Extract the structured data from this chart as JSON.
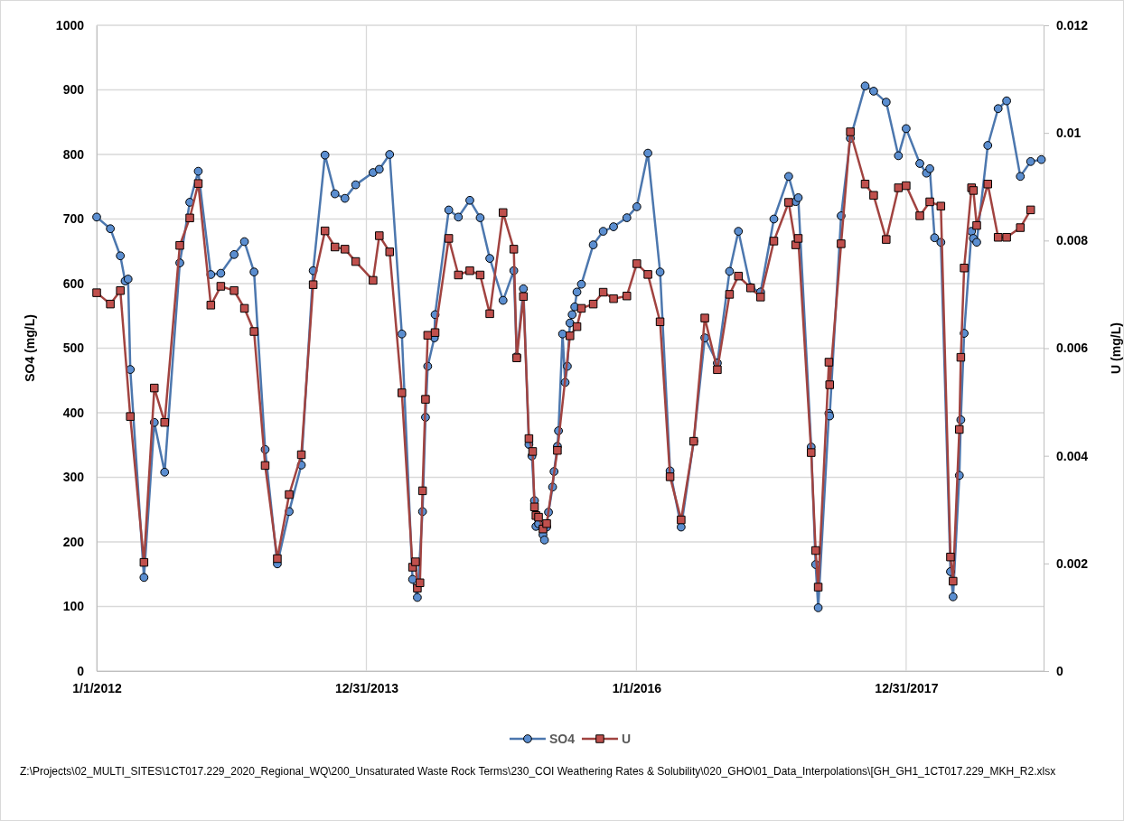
{
  "chart_data": {
    "type": "line",
    "xlabel": null,
    "ylabel": "SO4 (mg/L)",
    "y2label": "U (mg/L)",
    "xlim": [
      "2012-01-01",
      "2019-01-07"
    ],
    "xticks": [
      {
        "value": "2012-01-01",
        "label": "1/1/2012"
      },
      {
        "value": "2013-12-31",
        "label": "12/31/2013"
      },
      {
        "value": "2016-01-01",
        "label": "1/1/2016"
      },
      {
        "value": "2017-12-31",
        "label": "12/31/2017"
      }
    ],
    "ylim": [
      0,
      1000
    ],
    "yticks": [
      0,
      100,
      200,
      300,
      400,
      500,
      600,
      700,
      800,
      900,
      1000
    ],
    "y2lim": [
      0,
      0.012
    ],
    "y2ticks": [
      0,
      0.002,
      0.004,
      0.006,
      0.008,
      0.01,
      0.012
    ],
    "grid": true,
    "legend": "bottom",
    "annotations": [
      "Z:\\Projects\\02_MULTI_SITES\\1CT017.229_2020_Regional_WQ\\200_Unsaturated  Waste Rock Terms\\230_COI Weathering Rates & Solubility\\020_GHO\\01_Data_Interpolations\\[GH_GH1_1CT017.229_MKH_R2.xlsx"
    ],
    "series": [
      {
        "name": "SO4",
        "color": "#5b8ed0",
        "marker": "circle",
        "x": [
          "2012-01-01",
          "2012-02-07",
          "2012-03-05",
          "2012-03-18",
          "2012-03-26",
          "2012-04-01",
          "2012-05-08",
          "2012-06-05",
          "2012-07-03",
          "2012-08-13",
          "2012-09-09",
          "2012-10-02",
          "2012-11-05",
          "2012-12-02",
          "2013-01-07",
          "2013-02-04",
          "2013-03-02",
          "2013-04-01",
          "2013-05-04",
          "2013-06-05",
          "2013-07-08",
          "2013-08-09",
          "2013-09-10",
          "2013-10-07",
          "2013-11-03",
          "2013-12-02",
          "2014-01-18",
          "2014-02-04",
          "2014-03-04",
          "2014-04-06",
          "2014-05-05",
          "2014-05-18",
          "2014-06-01",
          "2014-06-09",
          "2014-06-15",
          "2014-07-03",
          "2014-07-05",
          "2014-08-11",
          "2014-09-06",
          "2014-10-07",
          "2014-11-04",
          "2014-11-30",
          "2015-01-05",
          "2015-02-03",
          "2015-02-11",
          "2015-03-01",
          "2015-03-16",
          "2015-03-24",
          "2015-03-31",
          "2015-04-04",
          "2015-04-11",
          "2015-04-23",
          "2015-04-27",
          "2015-05-03",
          "2015-05-08",
          "2015-05-19",
          "2015-05-23",
          "2015-06-01",
          "2015-06-04",
          "2015-06-15",
          "2015-06-22",
          "2015-06-28",
          "2015-07-05",
          "2015-07-11",
          "2015-07-18",
          "2015-07-24",
          "2015-08-05",
          "2015-09-06",
          "2015-10-03",
          "2015-10-31",
          "2015-12-06",
          "2016-01-02",
          "2016-02-01",
          "2016-03-05",
          "2016-04-01",
          "2016-05-01",
          "2016-06-04",
          "2016-07-04",
          "2016-08-07",
          "2016-09-09",
          "2016-10-03",
          "2016-11-05",
          "2016-12-02",
          "2017-01-07",
          "2017-02-16",
          "2017-03-07",
          "2017-03-14",
          "2017-04-18",
          "2017-04-30",
          "2017-05-07",
          "2017-06-05",
          "2017-06-07",
          "2017-07-08",
          "2017-08-02",
          "2017-09-11",
          "2017-10-04",
          "2017-11-07",
          "2017-12-10",
          "2017-12-31",
          "2018-02-06",
          "2018-02-24",
          "2018-03-05",
          "2018-03-18",
          "2018-04-04",
          "2018-04-30",
          "2018-05-07",
          "2018-05-24",
          "2018-05-28",
          "2018-06-06",
          "2018-06-26",
          "2018-07-01",
          "2018-07-10",
          "2018-08-09",
          "2018-09-06",
          "2018-09-29",
          "2018-11-05",
          "2018-12-03",
          "2019-01-01"
        ],
        "values": [
          703,
          685,
          643,
          604,
          607,
          467,
          145,
          385,
          308,
          632,
          726,
          774,
          614,
          616,
          645,
          665,
          618,
          343,
          166,
          247,
          319,
          620,
          799,
          739,
          732,
          753,
          772,
          777,
          800,
          522,
          142,
          114,
          247,
          393,
          472,
          516,
          552,
          714,
          703,
          729,
          702,
          639,
          574,
          620,
          487,
          592,
          351,
          333,
          264,
          224,
          228,
          211,
          203,
          223,
          246,
          285,
          309,
          348,
          372,
          522,
          447,
          472,
          539,
          552,
          564,
          587,
          599,
          660,
          681,
          688,
          702,
          719,
          802,
          618,
          310,
          223,
          356,
          516,
          477,
          619,
          681,
          594,
          587,
          700,
          766,
          727,
          733,
          347,
          165,
          98,
          399,
          395,
          705,
          825,
          906,
          898,
          881,
          798,
          840,
          786,
          771,
          778,
          671,
          664,
          154,
          115,
          303,
          389,
          523,
          681,
          670,
          664,
          814,
          871,
          883,
          766,
          789,
          792
        ]
      },
      {
        "name": "U",
        "color": "#c0504d",
        "marker": "square",
        "axis": "y2",
        "x": [
          "2012-01-01",
          "2012-02-07",
          "2012-03-05",
          "2012-04-01",
          "2012-05-08",
          "2012-06-05",
          "2012-07-03",
          "2012-08-13",
          "2012-09-09",
          "2012-10-02",
          "2012-11-05",
          "2012-12-02",
          "2013-01-07",
          "2013-02-04",
          "2013-03-02",
          "2013-04-01",
          "2013-05-04",
          "2013-06-05",
          "2013-07-08",
          "2013-08-09",
          "2013-09-10",
          "2013-10-07",
          "2013-11-03",
          "2013-12-02",
          "2014-01-18",
          "2014-02-04",
          "2014-03-04",
          "2014-04-06",
          "2014-05-05",
          "2014-05-13",
          "2014-05-18",
          "2014-05-25",
          "2014-06-01",
          "2014-06-09",
          "2014-06-15",
          "2014-07-05",
          "2014-08-11",
          "2014-09-06",
          "2014-10-07",
          "2014-11-04",
          "2014-11-30",
          "2015-01-05",
          "2015-02-03",
          "2015-02-11",
          "2015-03-01",
          "2015-03-16",
          "2015-03-26",
          "2015-03-31",
          "2015-04-04",
          "2015-04-11",
          "2015-04-23",
          "2015-05-03",
          "2015-06-01",
          "2015-07-05",
          "2015-07-24",
          "2015-08-05",
          "2015-09-06",
          "2015-10-03",
          "2015-10-31",
          "2015-12-06",
          "2016-01-02",
          "2016-02-01",
          "2016-03-05",
          "2016-04-01",
          "2016-05-01",
          "2016-06-04",
          "2016-07-04",
          "2016-08-07",
          "2016-09-09",
          "2016-10-03",
          "2016-11-05",
          "2016-12-02",
          "2017-01-07",
          "2017-02-16",
          "2017-03-07",
          "2017-03-14",
          "2017-04-18",
          "2017-04-30",
          "2017-05-07",
          "2017-06-05",
          "2017-06-07",
          "2017-07-08",
          "2017-08-02",
          "2017-09-11",
          "2017-10-04",
          "2017-11-07",
          "2017-12-10",
          "2017-12-31",
          "2018-02-06",
          "2018-03-05",
          "2018-04-04",
          "2018-04-30",
          "2018-05-07",
          "2018-05-24",
          "2018-05-28",
          "2018-06-06",
          "2018-06-26",
          "2018-07-01",
          "2018-07-10",
          "2018-08-09",
          "2018-09-06",
          "2018-09-29",
          "2018-11-05",
          "2018-12-03"
        ],
        "values": [
          0.00703,
          0.00682,
          0.00707,
          0.00473,
          0.00202,
          0.00526,
          0.00462,
          0.00791,
          0.00842,
          0.00906,
          0.0068,
          0.00715,
          0.00707,
          0.00674,
          0.00631,
          0.00382,
          0.00209,
          0.00328,
          0.00402,
          0.00718,
          0.00818,
          0.00788,
          0.00784,
          0.00761,
          0.00726,
          0.00809,
          0.00779,
          0.00517,
          0.00193,
          0.00203,
          0.00154,
          0.00164,
          0.00335,
          0.00505,
          0.00624,
          0.00629,
          0.00804,
          0.00736,
          0.00744,
          0.00736,
          0.00664,
          0.00852,
          0.00784,
          0.00582,
          0.00696,
          0.00432,
          0.00408,
          0.00305,
          0.00289,
          0.00286,
          0.00264,
          0.00274,
          0.0041,
          0.00623,
          0.0064,
          0.00674,
          0.00682,
          0.00704,
          0.00692,
          0.00697,
          0.00757,
          0.00737,
          0.00649,
          0.00361,
          0.00281,
          0.00427,
          0.00656,
          0.0056,
          0.007,
          0.00734,
          0.00712,
          0.00695,
          0.00799,
          0.00871,
          0.00792,
          0.00804,
          0.00406,
          0.00224,
          0.00156,
          0.00574,
          0.00532,
          0.00794,
          0.01002,
          0.00905,
          0.00884,
          0.00802,
          0.00898,
          0.00902,
          0.00846,
          0.00872,
          0.00864,
          0.00212,
          0.00167,
          0.00449,
          0.00583,
          0.00749,
          0.00898,
          0.00893,
          0.00828,
          0.00905,
          0.00806,
          0.00806,
          0.00824,
          0.00857
        ]
      }
    ]
  }
}
